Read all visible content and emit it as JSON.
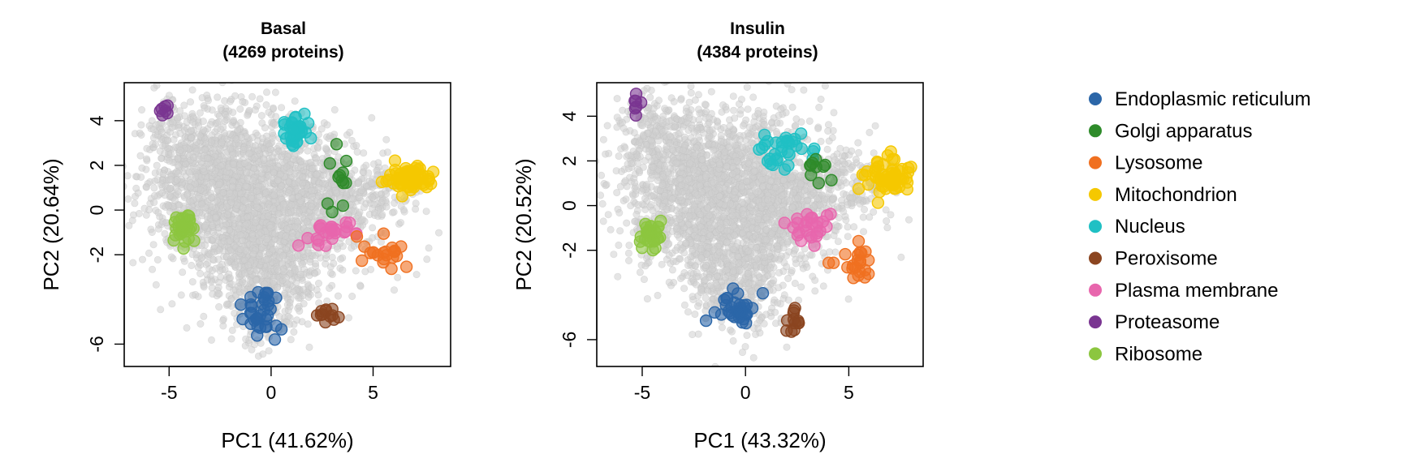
{
  "chart_data": {
    "type": "scatter",
    "legend_position": "right",
    "point_colors": {
      "background": "#c9c9c9",
      "Endoplasmic reticulum": "#2b66a8",
      "Golgi apparatus": "#2e8b2a",
      "Lysosome": "#f07020",
      "Mitochondrion": "#f5c800",
      "Nucleus": "#1fc0c4",
      "Peroxisome": "#8b4520",
      "Plasma membrane": "#e866ad",
      "Proteasome": "#7a3591",
      "Ribosome": "#8cc63f"
    },
    "legend": [
      "Endoplasmic reticulum",
      "Golgi apparatus",
      "Lysosome",
      "Mitochondrion",
      "Nucleus",
      "Peroxisome",
      "Plasma membrane",
      "Proteasome",
      "Ribosome"
    ],
    "panels": [
      {
        "title_line1": "Basal",
        "title_line2": "(4269 proteins)",
        "xlabel": "PC1 (41.62%)",
        "ylabel": "PC2 (20.64%)",
        "xlim": [
          -7.2,
          8.8
        ],
        "ylim": [
          -7.0,
          5.7
        ],
        "xticks": [
          -5,
          0,
          5
        ],
        "yticks": [
          4,
          2,
          0,
          -2,
          -6
        ],
        "ytick_labels": [
          "4",
          "2",
          "0",
          "-2",
          "-6"
        ],
        "clusters": [
          {
            "name": "Proteasome",
            "center": [
              -5.2,
              4.4
            ],
            "spread": [
              0.15,
              0.18
            ],
            "n": 7
          },
          {
            "name": "Plasma membrane",
            "center": [
              3.0,
              -1.0
            ],
            "spread": [
              0.6,
              0.4
            ],
            "n": 26
          },
          {
            "name": "Nucleus",
            "center": [
              1.2,
              3.5
            ],
            "spread": [
              0.45,
              0.38
            ],
            "n": 32
          },
          {
            "name": "Golgi apparatus",
            "center": [
              3.4,
              1.2
            ],
            "spread": [
              0.45,
              0.65
            ],
            "n": 12
          },
          {
            "name": "Mitochondrion",
            "center": [
              6.8,
              1.4
            ],
            "spread": [
              0.65,
              0.28
            ],
            "n": 60
          },
          {
            "name": "Lysosome",
            "center": [
              5.5,
              -1.9
            ],
            "spread": [
              0.5,
              0.35
            ],
            "n": 22
          },
          {
            "name": "Ribosome",
            "center": [
              -4.3,
              -0.9
            ],
            "spread": [
              0.28,
              0.32
            ],
            "n": 30
          },
          {
            "name": "Endoplasmic reticulum",
            "center": [
              -0.4,
              -4.6
            ],
            "spread": [
              0.55,
              0.45
            ],
            "n": 35
          },
          {
            "name": "Peroxisome",
            "center": [
              2.8,
              -4.8
            ],
            "spread": [
              0.3,
              0.3
            ],
            "n": 12
          },
          {
            "name": "Peroxisome",
            "center": [
              2.8,
              -4.8
            ],
            "spread": [
              0.3,
              0.3
            ],
            "n": 0
          },
          {
            "name": "Endoplasmic reticulum",
            "center": [
              -0.4,
              -4.6
            ],
            "spread": [
              0.0,
              0.0
            ],
            "n": 0
          },
          {
            "name": "Endoplasmic reticulum",
            "center": [
              -0.4,
              -4.6
            ],
            "spread": [
              0.0,
              0.0
            ],
            "n": 0
          },
          {
            "name": "Endoplasmic reticulum",
            "center": [
              -0.4,
              -4.6
            ],
            "spread": [
              0.0,
              0.0
            ],
            "n": 0
          },
          {
            "name": "Endoplasmic reticulum",
            "center": [
              -0.4,
              -4.6
            ],
            "spread": [
              0.0,
              0.0
            ],
            "n": 0
          }
        ],
        "extra_clusters": [
          {
            "name": "Endoplasmic reticulum",
            "center": [
              -0.4,
              -4.6
            ],
            "spread": [
              0.0,
              0.0
            ],
            "n": 0
          }
        ]
      },
      {
        "title_line1": "Insulin",
        "title_line2": "(4384 proteins)",
        "xlabel": "PC1 (43.32%)",
        "ylabel": "PC2 (20.52%)",
        "xlim": [
          -7.2,
          8.6
        ],
        "ylim": [
          -7.2,
          5.5
        ],
        "xticks": [
          -5,
          0,
          5
        ],
        "yticks": [
          4,
          2,
          0,
          -2,
          -6
        ],
        "ytick_labels": [
          "4",
          "2",
          "0",
          "-2",
          "-6"
        ],
        "clusters": [
          {
            "name": "Proteasome",
            "center": [
              -5.3,
              4.5
            ],
            "spread": [
              0.2,
              0.3
            ],
            "n": 7
          },
          {
            "name": "Ribosome",
            "center": [
              -4.6,
              -1.3
            ],
            "spread": [
              0.28,
              0.3
            ],
            "n": 30
          },
          {
            "name": "Plasma membrane",
            "center": [
              3.1,
              -1.0
            ],
            "spread": [
              0.55,
              0.4
            ],
            "n": 26
          },
          {
            "name": "Nucleus",
            "center": [
              1.7,
              2.5
            ],
            "spread": [
              0.85,
              0.45
            ],
            "n": 32
          },
          {
            "name": "Golgi apparatus",
            "center": [
              3.4,
              1.4
            ],
            "spread": [
              0.45,
              0.4
            ],
            "n": 10
          },
          {
            "name": "Mitochondrion",
            "center": [
              6.8,
              1.3
            ],
            "spread": [
              0.6,
              0.35
            ],
            "n": 60
          },
          {
            "name": "Lysosome",
            "center": [
              5.4,
              -2.6
            ],
            "spread": [
              0.5,
              0.45
            ],
            "n": 22
          },
          {
            "name": "Endoplasmic reticulum",
            "center": [
              -0.5,
              -4.5
            ],
            "spread": [
              0.55,
              0.45
            ],
            "n": 35
          },
          {
            "name": "Peroxisome",
            "center": [
              2.3,
              -5.1
            ],
            "spread": [
              0.25,
              0.45
            ],
            "n": 12
          }
        ]
      }
    ]
  }
}
